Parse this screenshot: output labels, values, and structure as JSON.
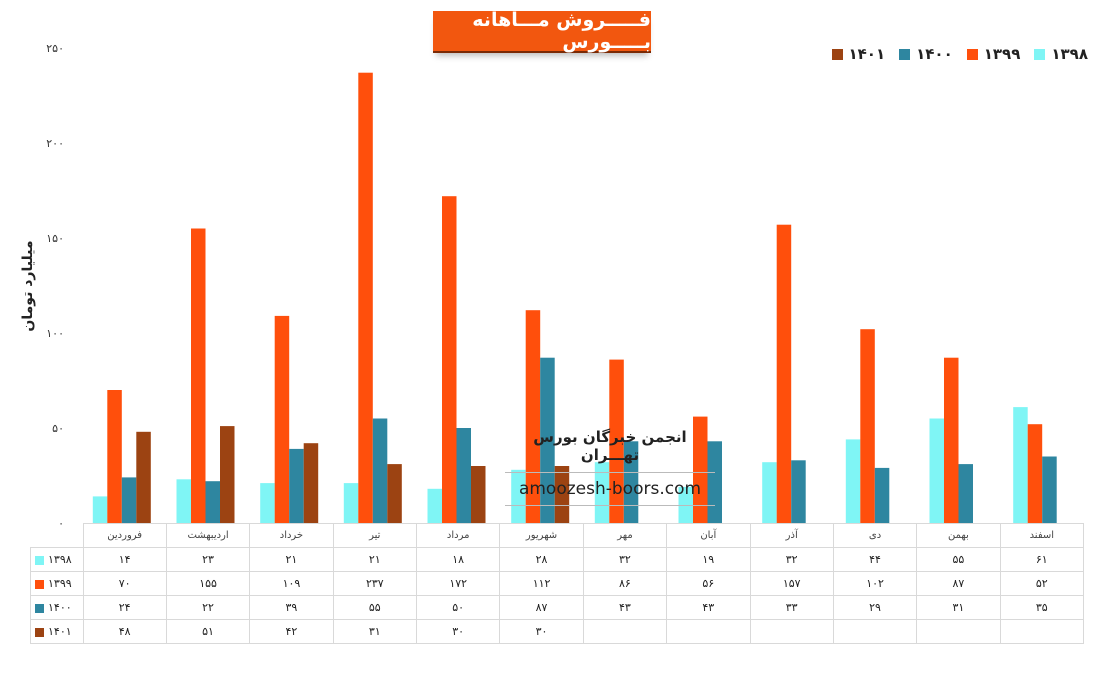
{
  "title": "فـــــروش مـــاهانه بـــــورس",
  "ylabel": "میلیارد تومان",
  "watermark": {
    "line1": "انجمن خبرگان بورس تهـــران",
    "line2": "amoozesh-boors.com"
  },
  "colors": {
    "1398": "#7ff5f5",
    "1399": "#ff4f0c",
    "1400": "#2e86a0",
    "1401": "#9c4312"
  },
  "chart_data": {
    "type": "bar",
    "title": "فـــــروش مـــاهانه بـــــورس",
    "ylabel": "میلیارد تومان",
    "ylim": [
      0,
      250
    ],
    "yticks": [
      0,
      50,
      100,
      150,
      200,
      250
    ],
    "ytick_labels": [
      "۰",
      "۵۰",
      "۱۰۰",
      "۱۵۰",
      "۲۰۰",
      "۲۵۰"
    ],
    "grid": false,
    "legend_position": "top-right",
    "categories": [
      "فروردین",
      "اردیبهشت",
      "خرداد",
      "تیر",
      "مرداد",
      "شهریور",
      "مهر",
      "آبان",
      "آذر",
      "دی",
      "بهمن",
      "اسفند"
    ],
    "series": [
      {
        "name": "۱۳۹۸",
        "color": "#7ff5f5",
        "values": [
          14,
          23,
          21,
          21,
          18,
          28,
          32,
          19,
          32,
          44,
          55,
          61
        ],
        "labels": [
          "۱۴",
          "۲۳",
          "۲۱",
          "۲۱",
          "۱۸",
          "۲۸",
          "۳۲",
          "۱۹",
          "۳۲",
          "۴۴",
          "۵۵",
          "۶۱"
        ]
      },
      {
        "name": "۱۳۹۹",
        "color": "#ff4f0c",
        "values": [
          70,
          155,
          109,
          237,
          172,
          112,
          86,
          56,
          157,
          102,
          87,
          52
        ],
        "labels": [
          "۷۰",
          "۱۵۵",
          "۱۰۹",
          "۲۳۷",
          "۱۷۲",
          "۱۱۲",
          "۸۶",
          "۵۶",
          "۱۵۷",
          "۱۰۲",
          "۸۷",
          "۵۲"
        ]
      },
      {
        "name": "۱۴۰۰",
        "color": "#2e86a0",
        "values": [
          24,
          22,
          39,
          55,
          50,
          87,
          43,
          43,
          33,
          29,
          31,
          35
        ],
        "labels": [
          "۲۴",
          "۲۲",
          "۳۹",
          "۵۵",
          "۵۰",
          "۸۷",
          "۴۳",
          "۴۳",
          "۳۳",
          "۲۹",
          "۳۱",
          "۳۵"
        ]
      },
      {
        "name": "۱۴۰۱",
        "color": "#9c4312",
        "values": [
          48,
          51,
          42,
          31,
          30,
          30,
          null,
          null,
          null,
          null,
          null,
          null
        ],
        "labels": [
          "۴۸",
          "۵۱",
          "۴۲",
          "۳۱",
          "۳۰",
          "۳۰",
          "",
          "",
          "",
          "",
          "",
          ""
        ]
      }
    ]
  }
}
